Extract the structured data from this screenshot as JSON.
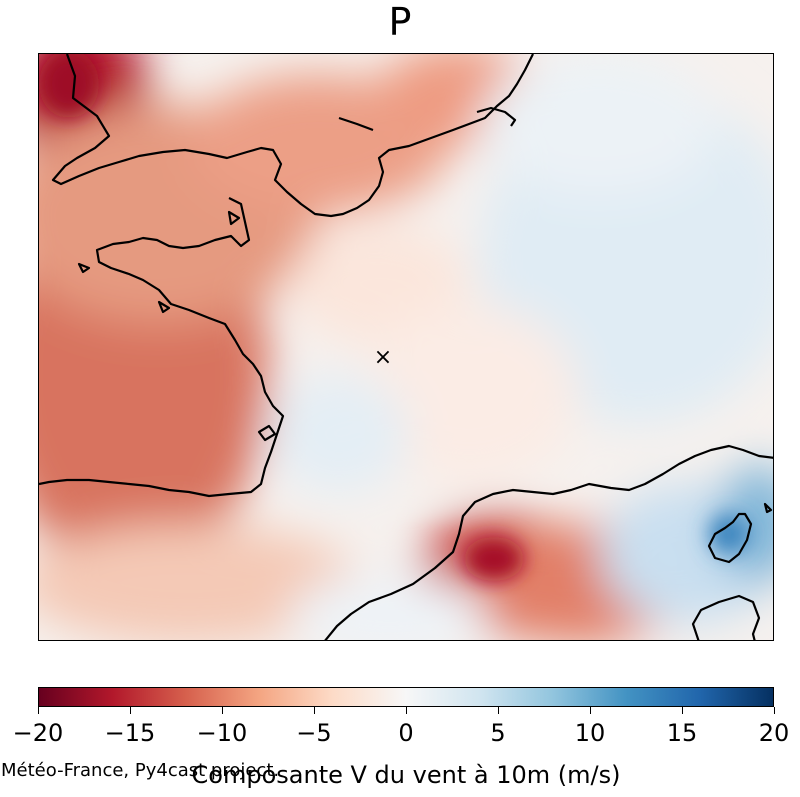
{
  "title": "P",
  "colorbar": {
    "label": "Composante V du vent à 10m (m/s)",
    "range": [
      -20,
      20
    ],
    "ticks": [
      "−20",
      "−15",
      "−10",
      "−5",
      "0",
      "5",
      "10",
      "15",
      "20"
    ],
    "colormap": "RdBu",
    "colors": [
      "#67001f",
      "#b2182b",
      "#d6604d",
      "#f4a582",
      "#fddbc7",
      "#f7f7f7",
      "#d1e5f0",
      "#92c5de",
      "#4393c3",
      "#2166ac",
      "#053061"
    ]
  },
  "credit": "Météo-France, Py4cast project.",
  "marker": {
    "symbol": "×"
  }
}
